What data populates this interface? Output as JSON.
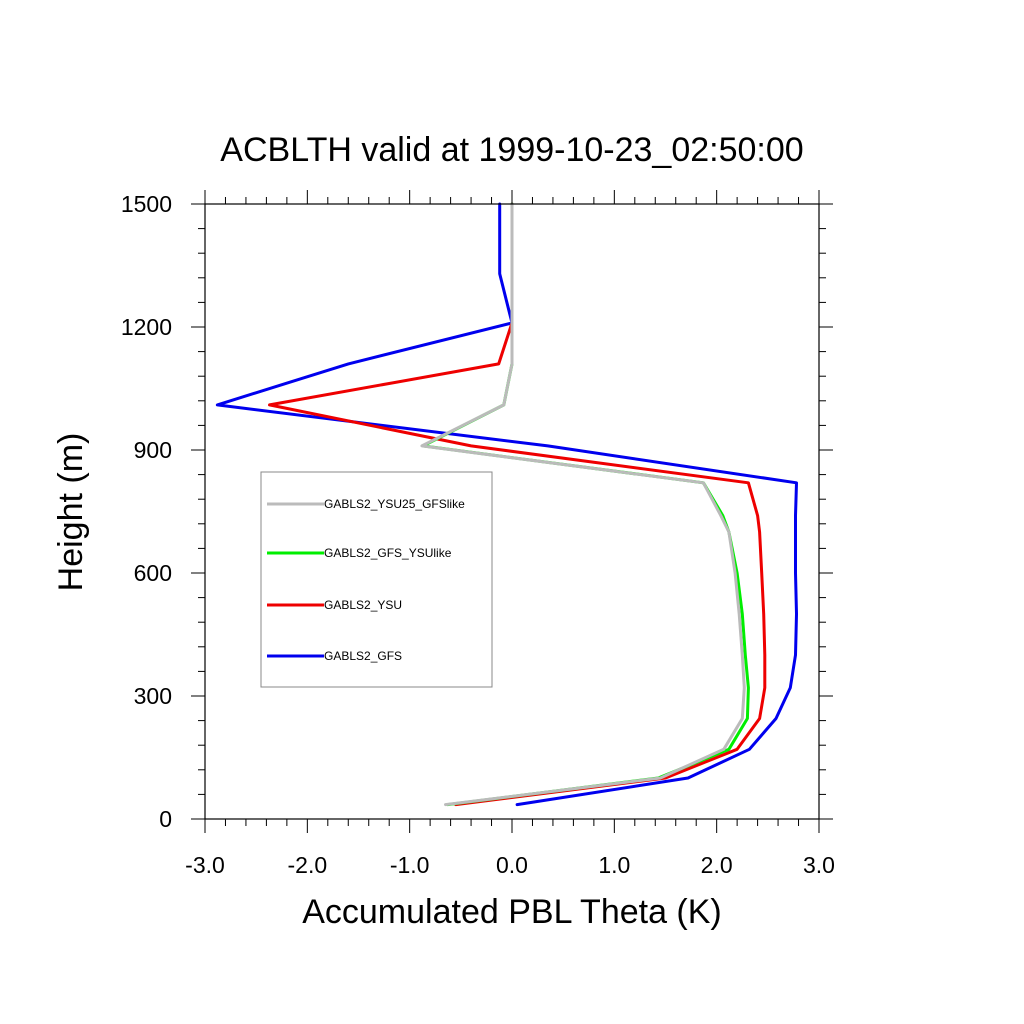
{
  "chart_data": {
    "type": "line",
    "title": "ACBLTH valid at 1999-10-23_02:50:00",
    "xlabel": "Accumulated PBL Theta (K)",
    "ylabel": "Height (m)",
    "xlim": [
      -3.0,
      3.0
    ],
    "ylim": [
      0,
      1500
    ],
    "xticks": [
      -3.0,
      -2.0,
      -1.0,
      0.0,
      1.0,
      2.0,
      3.0
    ],
    "xtick_labels": [
      "-3.0",
      "-2.0",
      "-1.0",
      "0.0",
      "1.0",
      "2.0",
      "3.0"
    ],
    "yticks": [
      0,
      300,
      600,
      900,
      1200,
      1500
    ],
    "ytick_labels": [
      "0",
      "300",
      "600",
      "900",
      "1200",
      "1500"
    ],
    "grid": false,
    "legend_position": "left-middle",
    "series": [
      {
        "name": "GABLS2_YSU25_GFSlike",
        "color": "#bbbbbb",
        "points": [
          [
            -0.65,
            35
          ],
          [
            1.45,
            100
          ],
          [
            2.07,
            170
          ],
          [
            2.25,
            245
          ],
          [
            2.27,
            320
          ],
          [
            2.25,
            400
          ],
          [
            2.22,
            500
          ],
          [
            2.18,
            600
          ],
          [
            2.12,
            700
          ],
          [
            2.04,
            740
          ],
          [
            1.87,
            820
          ],
          [
            -0.88,
            910
          ],
          [
            -0.08,
            1010
          ],
          [
            0.0,
            1110
          ],
          [
            0.0,
            1210
          ],
          [
            0.0,
            1310
          ],
          [
            0.0,
            1500
          ]
        ]
      },
      {
        "name": "GABLS2_GFS_YSUlike",
        "color": "#00ee00",
        "points": [
          [
            -0.63,
            35
          ],
          [
            1.43,
            100
          ],
          [
            2.12,
            170
          ],
          [
            2.3,
            245
          ],
          [
            2.31,
            320
          ],
          [
            2.28,
            400
          ],
          [
            2.25,
            500
          ],
          [
            2.2,
            600
          ],
          [
            2.12,
            700
          ],
          [
            2.06,
            740
          ],
          [
            1.87,
            820
          ],
          [
            -0.87,
            910
          ],
          [
            -0.08,
            1010
          ],
          [
            0.0,
            1110
          ],
          [
            0.0,
            1210
          ],
          [
            0.0,
            1310
          ],
          [
            0.0,
            1500
          ]
        ]
      },
      {
        "name": "GABLS2_YSU",
        "color": "#ee0000",
        "points": [
          [
            -0.55,
            35
          ],
          [
            1.5,
            100
          ],
          [
            2.2,
            170
          ],
          [
            2.42,
            245
          ],
          [
            2.47,
            320
          ],
          [
            2.47,
            400
          ],
          [
            2.46,
            500
          ],
          [
            2.44,
            600
          ],
          [
            2.42,
            700
          ],
          [
            2.4,
            740
          ],
          [
            2.31,
            820
          ],
          [
            -0.4,
            910
          ],
          [
            -2.37,
            1010
          ],
          [
            -0.13,
            1110
          ],
          [
            0.0,
            1210
          ],
          [
            0.0,
            1310
          ],
          [
            0.0,
            1500
          ]
        ]
      },
      {
        "name": "GABLS2_GFS",
        "color": "#0000ee",
        "points": [
          [
            0.05,
            35
          ],
          [
            1.72,
            100
          ],
          [
            2.32,
            170
          ],
          [
            2.58,
            245
          ],
          [
            2.72,
            320
          ],
          [
            2.77,
            400
          ],
          [
            2.78,
            500
          ],
          [
            2.77,
            600
          ],
          [
            2.77,
            700
          ],
          [
            2.77,
            740
          ],
          [
            2.78,
            820
          ],
          [
            0.35,
            910
          ],
          [
            -2.88,
            1010
          ],
          [
            -1.6,
            1110
          ],
          [
            0.0,
            1210
          ],
          [
            -0.12,
            1330
          ],
          [
            -0.12,
            1500
          ]
        ]
      }
    ]
  }
}
